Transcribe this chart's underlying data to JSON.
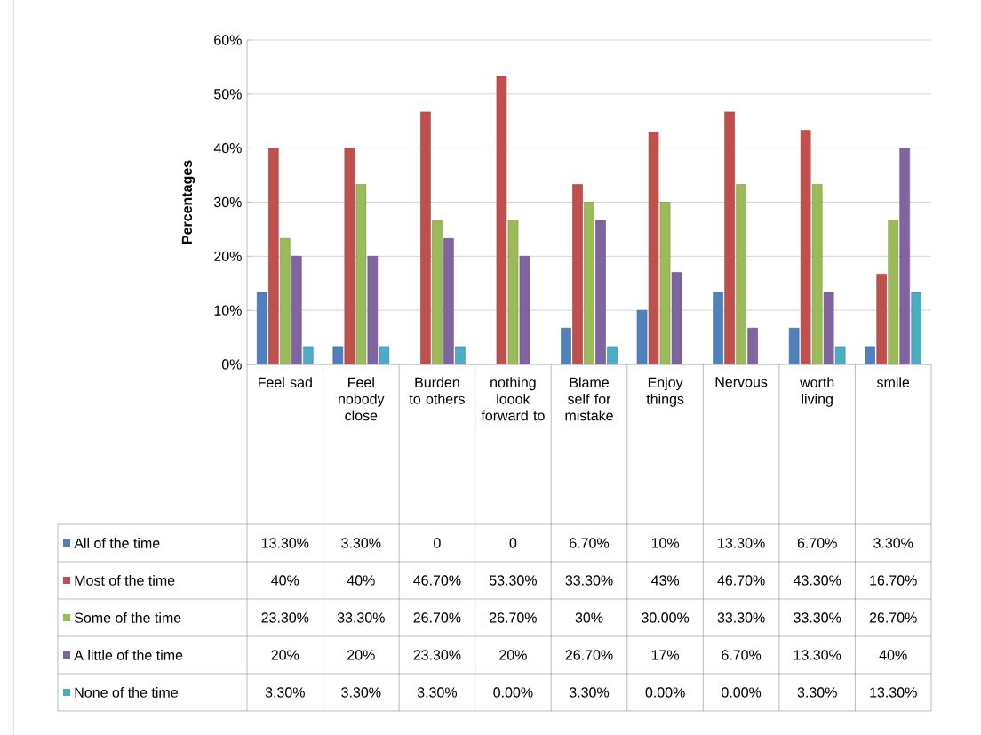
{
  "chart_data": {
    "type": "bar",
    "ylabel": "Percentages",
    "grid": "y",
    "legend": "bottom left",
    "data_labels": true,
    "categories": [
      "Feel sad",
      "Feel nobody close",
      "Burden to others",
      "nothing loook forward to",
      "Blame self for mistake",
      "Enjoy things",
      "Nervous",
      "worth living",
      "smile"
    ],
    "ylim": [
      0,
      60
    ],
    "yticks": [
      {
        "value": 0,
        "label": "0%"
      },
      {
        "value": 10,
        "label": "10%"
      },
      {
        "value": 20,
        "label": "20%"
      },
      {
        "value": 30,
        "label": "30%"
      },
      {
        "value": 40,
        "label": "40%"
      },
      {
        "value": 50,
        "label": "50%"
      },
      {
        "value": 60,
        "label": "60%"
      }
    ],
    "series": [
      {
        "name": "All of the time",
        "color": "#4f81bd",
        "values": [
          13.3,
          3.3,
          0,
          0,
          6.7,
          10,
          13.3,
          6.7,
          3.3
        ],
        "value_labels": [
          "13.30%",
          "3.30%",
          "0",
          "0",
          "6.70%",
          "10%",
          "13.30%",
          "6.70%",
          "3.30%"
        ]
      },
      {
        "name": "Most of the time",
        "color": "#c0504d",
        "values": [
          40,
          40,
          46.7,
          53.3,
          33.3,
          43,
          46.7,
          43.3,
          16.7
        ],
        "value_labels": [
          "40%",
          "40%",
          "46.70%",
          "53.30%",
          "33.30%",
          "43%",
          "46.70%",
          "43.30%",
          "16.70%"
        ]
      },
      {
        "name": "Some of the time",
        "color": "#9bbb59",
        "values": [
          23.3,
          33.3,
          26.7,
          26.7,
          30,
          30,
          33.3,
          33.3,
          26.7
        ],
        "value_labels": [
          "23.30%",
          "33.30%",
          "26.70%",
          "26.70%",
          "30%",
          "30.00%",
          "33.30%",
          "33.30%",
          "26.70%"
        ]
      },
      {
        "name": "A little of the time",
        "color": "#8064a2",
        "values": [
          20,
          20,
          23.3,
          20,
          26.7,
          17,
          6.7,
          13.3,
          40
        ],
        "value_labels": [
          "20%",
          "20%",
          "23.30%",
          "20%",
          "26.70%",
          "17%",
          "6.70%",
          "13.30%",
          "40%"
        ]
      },
      {
        "name": "None of the time",
        "color": "#4bacc6",
        "values": [
          3.3,
          3.3,
          3.3,
          0,
          3.3,
          0,
          0,
          3.3,
          13.3
        ],
        "value_labels": [
          "3.30%",
          "3.30%",
          "3.30%",
          "0.00%",
          "3.30%",
          "0.00%",
          "0.00%",
          "3.30%",
          "13.30%"
        ]
      }
    ]
  }
}
